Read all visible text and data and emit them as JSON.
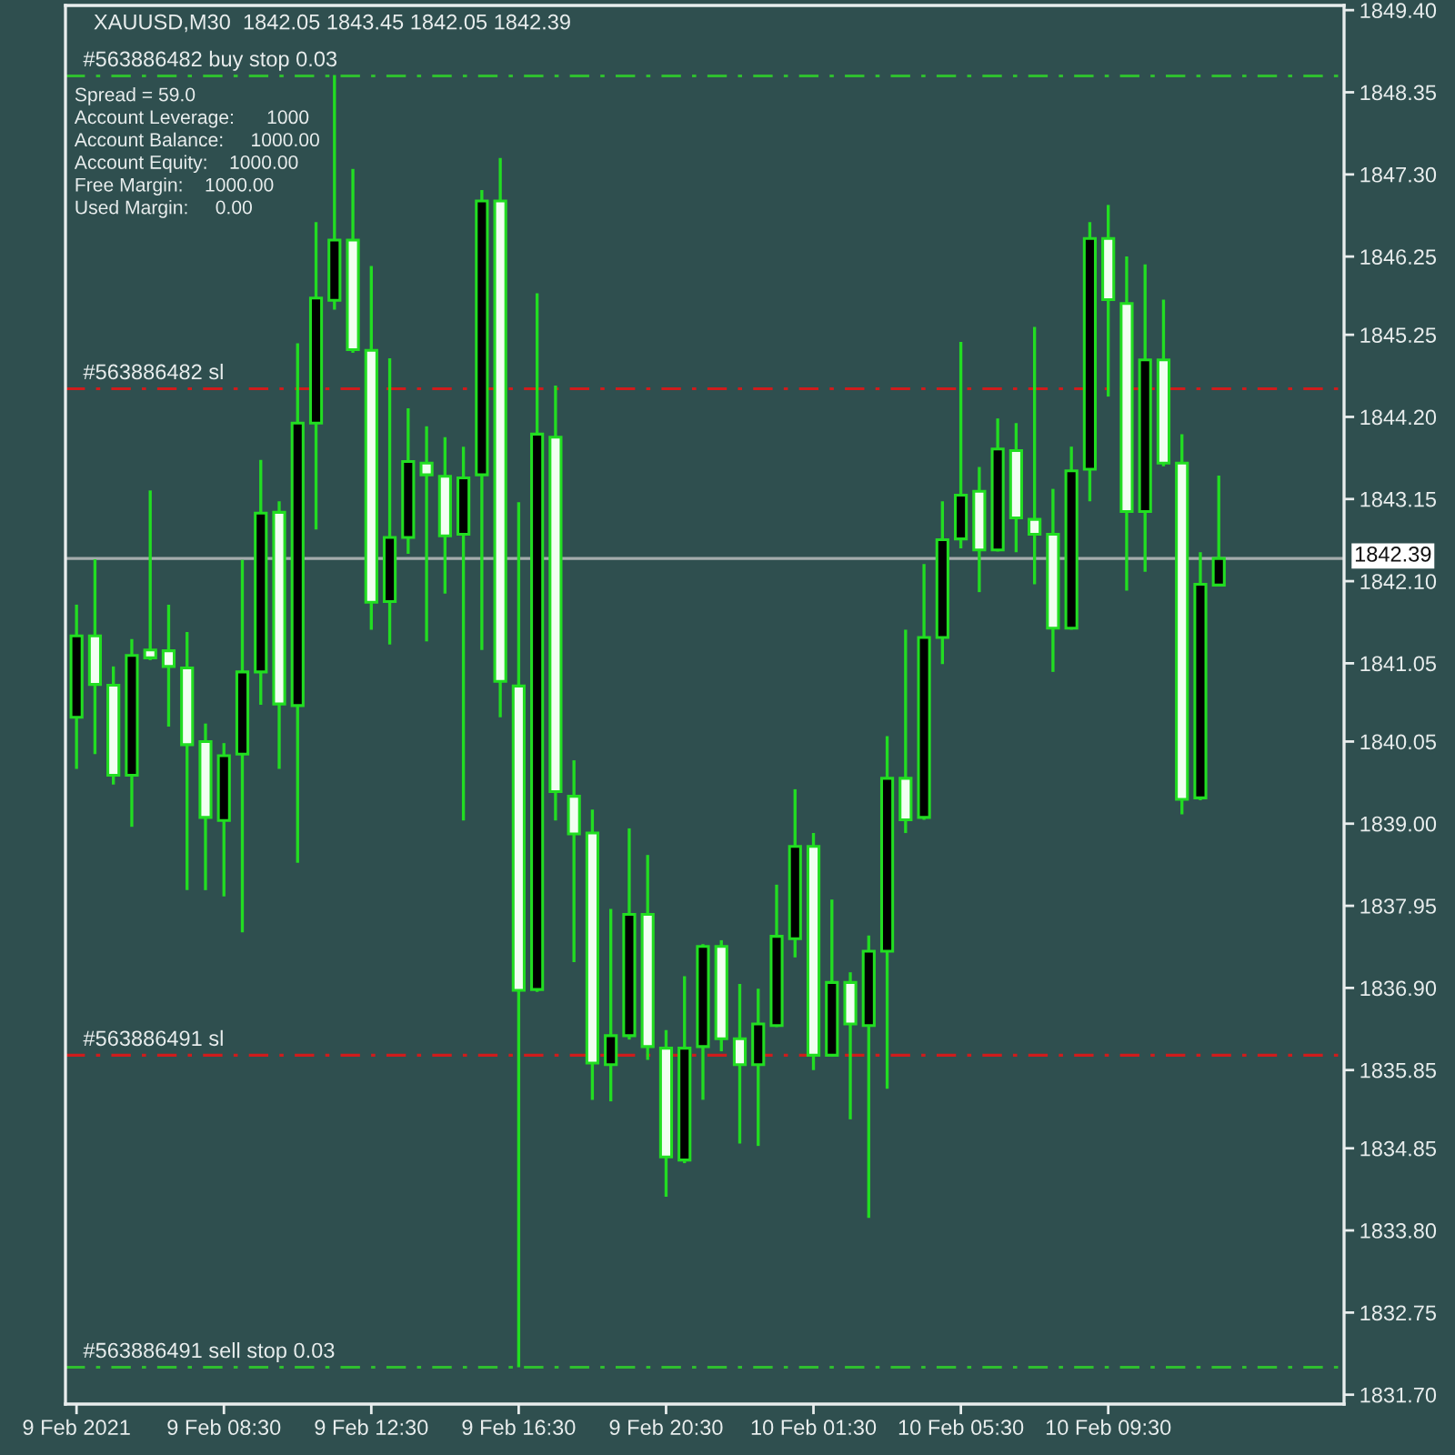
{
  "chart_data": {
    "type": "candlestick",
    "title": "XAUUSD,M30  1842.05 1843.45 1842.05 1842.39",
    "categories": [
      "9 Feb 2021",
      null,
      null,
      null,
      null,
      null,
      null,
      null,
      "9 Feb 08:30",
      null,
      null,
      null,
      null,
      null,
      null,
      null,
      "9 Feb 12:30",
      null,
      null,
      null,
      null,
      null,
      null,
      null,
      "9 Feb 16:30",
      null,
      null,
      null,
      null,
      null,
      null,
      null,
      "9 Feb 20:30",
      null,
      null,
      null,
      null,
      null,
      null,
      null,
      "10 Feb 01:30",
      null,
      null,
      null,
      null,
      null,
      null,
      null,
      "10 Feb 05:30",
      null,
      null,
      null,
      null,
      null,
      null,
      null,
      "10 Feb 09:30",
      null,
      null,
      null,
      null,
      null,
      null,
      null,
      null,
      null,
      null,
      null,
      null
    ],
    "ohlc": [
      [
        1840.36,
        1841.8,
        1839.7,
        1841.4
      ],
      [
        1841.4,
        1842.38,
        1839.89,
        1840.78
      ],
      [
        1840.77,
        1841.01,
        1839.5,
        1839.62
      ],
      [
        1839.62,
        1841.36,
        1838.96,
        1841.15
      ],
      [
        1841.22,
        1843.26,
        1841.09,
        1841.12
      ],
      [
        1841.21,
        1841.8,
        1840.24,
        1841.01
      ],
      [
        1840.99,
        1841.45,
        1838.15,
        1840.01
      ],
      [
        1840.05,
        1840.28,
        1838.15,
        1839.08
      ],
      [
        1839.04,
        1840.03,
        1838.07,
        1839.87
      ],
      [
        1839.89,
        1842.37,
        1837.61,
        1840.94
      ],
      [
        1840.94,
        1843.65,
        1840.52,
        1842.97
      ],
      [
        1842.98,
        1843.12,
        1839.7,
        1840.53
      ],
      [
        1840.51,
        1845.14,
        1838.5,
        1844.12
      ],
      [
        1844.12,
        1846.69,
        1842.76,
        1845.72
      ],
      [
        1845.69,
        1848.57,
        1845.57,
        1846.46
      ],
      [
        1846.46,
        1847.37,
        1845.02,
        1845.06
      ],
      [
        1845.05,
        1846.13,
        1841.48,
        1841.83
      ],
      [
        1841.84,
        1844.95,
        1841.29,
        1842.66
      ],
      [
        1842.66,
        1844.31,
        1842.45,
        1843.63
      ],
      [
        1843.61,
        1844.08,
        1841.33,
        1843.46
      ],
      [
        1843.44,
        1843.94,
        1841.94,
        1842.68
      ],
      [
        1842.7,
        1843.82,
        1839.04,
        1843.42
      ],
      [
        1843.46,
        1847.1,
        1841.22,
        1846.96
      ],
      [
        1846.96,
        1847.51,
        1840.36,
        1840.82
      ],
      [
        1840.76,
        1843.11,
        1832.05,
        1836.87
      ],
      [
        1836.88,
        1845.78,
        1836.85,
        1843.98
      ],
      [
        1843.94,
        1844.6,
        1839.04,
        1839.41
      ],
      [
        1839.35,
        1839.81,
        1837.23,
        1838.87
      ],
      [
        1838.88,
        1839.18,
        1835.47,
        1835.94
      ],
      [
        1835.92,
        1837.91,
        1835.45,
        1836.29
      ],
      [
        1836.29,
        1838.94,
        1836.24,
        1837.84
      ],
      [
        1837.84,
        1838.6,
        1835.98,
        1836.15
      ],
      [
        1836.13,
        1836.36,
        1834.23,
        1834.74
      ],
      [
        1834.7,
        1837.05,
        1834.66,
        1836.13
      ],
      [
        1836.15,
        1837.46,
        1835.47,
        1837.43
      ],
      [
        1837.43,
        1837.51,
        1836.09,
        1836.25
      ],
      [
        1836.25,
        1836.95,
        1834.91,
        1835.92
      ],
      [
        1835.92,
        1836.89,
        1834.88,
        1836.44
      ],
      [
        1836.42,
        1838.22,
        1836.4,
        1837.56
      ],
      [
        1837.53,
        1839.44,
        1837.29,
        1838.71
      ],
      [
        1838.71,
        1838.88,
        1835.85,
        1836.04
      ],
      [
        1836.04,
        1838.03,
        1836.02,
        1836.97
      ],
      [
        1836.97,
        1837.1,
        1835.22,
        1836.44
      ],
      [
        1836.42,
        1837.57,
        1833.96,
        1837.37
      ],
      [
        1837.37,
        1840.12,
        1835.61,
        1839.58
      ],
      [
        1839.58,
        1841.48,
        1838.88,
        1839.05
      ],
      [
        1839.08,
        1842.32,
        1839.05,
        1841.38
      ],
      [
        1841.38,
        1843.12,
        1841.04,
        1842.63
      ],
      [
        1842.64,
        1845.16,
        1842.52,
        1843.2
      ],
      [
        1843.25,
        1843.56,
        1841.96,
        1842.5
      ],
      [
        1842.5,
        1844.18,
        1842.48,
        1843.79
      ],
      [
        1843.77,
        1844.12,
        1842.47,
        1842.91
      ],
      [
        1842.89,
        1845.35,
        1842.06,
        1842.7
      ],
      [
        1842.7,
        1843.28,
        1840.94,
        1841.5
      ],
      [
        1841.5,
        1843.82,
        1841.48,
        1843.51
      ],
      [
        1843.53,
        1846.69,
        1843.12,
        1846.48
      ],
      [
        1846.48,
        1846.91,
        1844.46,
        1845.7
      ],
      [
        1845.65,
        1846.25,
        1841.98,
        1842.99
      ],
      [
        1842.99,
        1846.15,
        1842.22,
        1844.93
      ],
      [
        1844.93,
        1845.7,
        1843.57,
        1843.61
      ],
      [
        1843.61,
        1843.98,
        1839.12,
        1839.31
      ],
      [
        1839.33,
        1842.47,
        1839.3,
        1842.06
      ],
      [
        1842.05,
        1843.45,
        1842.05,
        1842.39
      ],
      null,
      null,
      null,
      null,
      null,
      null
    ],
    "color": "#22dd22",
    "colors": [
      "#000000",
      "#f2fff2",
      "#f2fff2",
      "#000000",
      "#f2fff2",
      "#f2fff2",
      "#f2fff2",
      "#f2fff2",
      "#000000",
      "#000000",
      "#000000",
      "#f2fff2",
      "#000000",
      "#000000",
      "#000000",
      "#f2fff2",
      "#f2fff2",
      "#000000",
      "#000000",
      "#f2fff2",
      "#f2fff2",
      "#000000",
      "#000000",
      "#f2fff2",
      "#f2fff2",
      "#000000",
      "#f2fff2",
      "#f2fff2",
      "#f2fff2",
      "#000000",
      "#000000",
      "#f2fff2",
      "#f2fff2",
      "#000000",
      "#000000",
      "#f2fff2",
      "#f2fff2",
      "#000000",
      "#000000",
      "#000000",
      "#f2fff2",
      "#000000",
      "#f2fff2",
      "#000000",
      "#000000",
      "#f2fff2",
      "#000000",
      "#000000",
      "#000000",
      "#f2fff2",
      "#000000",
      "#f2fff2",
      "#f2fff2",
      "#f2fff2",
      "#000000",
      "#000000",
      "#f2fff2",
      "#f2fff2",
      "#000000",
      "#f2fff2",
      "#f2fff2",
      "#000000",
      "#000000",
      null,
      null,
      null,
      null,
      null,
      null
    ],
    "ylim": [
      1831.58,
      1849.46
    ],
    "yticks": [
      {
        "value": 1849.4,
        "label": "1849.40"
      },
      {
        "value": 1848.35,
        "label": "1848.35"
      },
      {
        "value": 1847.3,
        "label": "1847.30"
      },
      {
        "value": 1846.25,
        "label": "1846.25"
      },
      {
        "value": 1845.25,
        "label": "1845.25"
      },
      {
        "value": 1844.2,
        "label": "1844.20"
      },
      {
        "value": 1843.15,
        "label": "1843.15"
      },
      {
        "value": 1842.1,
        "label": "1842.10"
      },
      {
        "value": 1841.05,
        "label": "1841.05"
      },
      {
        "value": 1840.05,
        "label": "1840.05"
      },
      {
        "value": 1839.0,
        "label": "1839.00"
      },
      {
        "value": 1837.95,
        "label": "1837.95"
      },
      {
        "value": 1836.9,
        "label": "1836.90"
      },
      {
        "value": 1835.85,
        "label": "1835.85"
      },
      {
        "value": 1834.85,
        "label": "1834.85"
      },
      {
        "value": 1833.8,
        "label": "1833.80"
      },
      {
        "value": 1832.75,
        "label": "1832.75"
      },
      {
        "value": 1831.7,
        "label": "1831.70"
      }
    ],
    "ref_lines": [
      {
        "axis": "y",
        "value": 1848.56,
        "label": "#563886482 buy stop 0.03",
        "color": "#2fbf2f",
        "line_style": "dashdot"
      },
      {
        "axis": "y",
        "value": 1844.56,
        "label": "#563886482 sl",
        "color": "#d01c1c",
        "line_style": "dashdot"
      },
      {
        "axis": "y",
        "value": 1842.39,
        "label": "1842.39",
        "color": "#a4acac",
        "line_style": "solid"
      },
      {
        "axis": "y",
        "value": 1836.04,
        "label": "#563886491 sl",
        "color": "#d01c1c",
        "line_style": "dashdot"
      },
      {
        "axis": "y",
        "value": 1832.05,
        "label": "#563886491 sell stop 0.03",
        "color": "#2fbf2f",
        "line_style": "dashdot"
      }
    ],
    "annotations": [
      "Spread = 59.0",
      "Account Leverage:      1000",
      "Account Balance:     1000.00",
      "Account Equity:    1000.00",
      "Free Margin:    1000.00",
      "Used Margin:     0.00"
    ]
  }
}
